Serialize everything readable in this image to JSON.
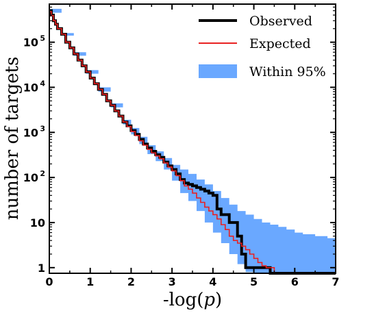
{
  "chart_data": {
    "type": "line",
    "xlabel_prefix": "-log(",
    "xlabel_var": "p",
    "xlabel_suffix": ")",
    "ylabel": "number of targets",
    "xlim": [
      0,
      7
    ],
    "ylim": [
      0.75,
      700000
    ],
    "y_scale": "log",
    "grid": false,
    "legend_position": "top-right",
    "x_ticks": [
      0,
      1,
      2,
      3,
      4,
      5,
      6,
      7
    ],
    "x_tick_labels": [
      "0",
      "1",
      "2",
      "3",
      "4",
      "5",
      "6",
      "7"
    ],
    "y_ticks": [
      {
        "value": 1,
        "label": "1",
        "exp": ""
      },
      {
        "value": 10,
        "label": "10",
        "exp": ""
      },
      {
        "value": 100,
        "label": "10",
        "exp": "2"
      },
      {
        "value": 1000,
        "label": "10",
        "exp": "3"
      },
      {
        "value": 10000,
        "label": "10",
        "exp": "4"
      },
      {
        "value": 100000,
        "label": "10",
        "exp": "5"
      }
    ],
    "series": [
      {
        "name": "Observed",
        "color": "#000000",
        "style": "step",
        "x": [
          0.0,
          0.05,
          0.1,
          0.15,
          0.2,
          0.3,
          0.4,
          0.5,
          0.6,
          0.7,
          0.8,
          0.9,
          1.0,
          1.1,
          1.2,
          1.3,
          1.4,
          1.5,
          1.6,
          1.7,
          1.8,
          1.9,
          2.0,
          2.1,
          2.2,
          2.3,
          2.4,
          2.5,
          2.6,
          2.7,
          2.8,
          2.9,
          3.0,
          3.1,
          3.2,
          3.3,
          3.4,
          3.5,
          3.6,
          3.7,
          3.8,
          3.9,
          4.0,
          4.1,
          4.2,
          4.3,
          4.4,
          4.5,
          4.6,
          4.7,
          4.8,
          5.4,
          5.5,
          6.0,
          7.0
        ],
        "values": [
          500000,
          400000,
          300000,
          250000,
          200000,
          150000,
          100000,
          75000,
          55000,
          40000,
          30000,
          22000,
          16000,
          12000,
          9000,
          7000,
          5000,
          4000,
          3000,
          2300,
          1700,
          1400,
          1100,
          900,
          700,
          550,
          450,
          380,
          320,
          280,
          220,
          180,
          150,
          120,
          90,
          75,
          70,
          65,
          60,
          55,
          50,
          45,
          40,
          20,
          15,
          15,
          10,
          10,
          5,
          2,
          1,
          0.75,
          0.75,
          0.75,
          0.75
        ]
      },
      {
        "name": "Expected",
        "color": "#e82020",
        "style": "step",
        "x": [
          0.0,
          0.05,
          0.1,
          0.15,
          0.2,
          0.3,
          0.4,
          0.5,
          0.6,
          0.7,
          0.8,
          0.9,
          1.0,
          1.1,
          1.2,
          1.3,
          1.4,
          1.5,
          1.6,
          1.7,
          1.8,
          1.9,
          2.0,
          2.1,
          2.2,
          2.3,
          2.4,
          2.5,
          2.6,
          2.7,
          2.8,
          2.9,
          3.0,
          3.1,
          3.2,
          3.3,
          3.4,
          3.5,
          3.6,
          3.7,
          3.8,
          3.9,
          4.0,
          4.1,
          4.2,
          4.3,
          4.4,
          4.5,
          4.6,
          4.7,
          4.8,
          4.9,
          5.0,
          5.1,
          5.2,
          5.3,
          5.4,
          5.5,
          7.0
        ],
        "values": [
          480000,
          390000,
          300000,
          250000,
          200000,
          150000,
          100000,
          75000,
          55000,
          40000,
          30000,
          22000,
          16000,
          12000,
          9000,
          7000,
          5000,
          4000,
          3000,
          2300,
          1700,
          1350,
          1050,
          850,
          650,
          520,
          420,
          350,
          300,
          260,
          210,
          170,
          140,
          110,
          85,
          65,
          55,
          45,
          35,
          28,
          22,
          18,
          15,
          12,
          9,
          7,
          5,
          4,
          3.5,
          3,
          2.5,
          2,
          1.6,
          1.3,
          1.1,
          1,
          1,
          0.75,
          0.75
        ]
      },
      {
        "name": "Within 95%",
        "color": "#6aa8ff",
        "style": "band",
        "x": [
          0.0,
          0.3,
          0.6,
          0.9,
          1.2,
          1.5,
          1.8,
          2.0,
          2.2,
          2.4,
          2.6,
          2.8,
          3.0,
          3.2,
          3.4,
          3.6,
          3.8,
          4.0,
          4.2,
          4.4,
          4.6,
          4.8,
          5.0,
          5.2,
          5.4,
          5.6,
          5.8,
          6.0,
          6.2,
          6.5,
          6.8,
          7.0
        ],
        "lower": [
          450000,
          140000,
          50000,
          20000,
          8000,
          3600,
          1500,
          900,
          550,
          330,
          230,
          150,
          85,
          45,
          30,
          18,
          10,
          6,
          3.5,
          2,
          1.2,
          0.8,
          0.75,
          0.75,
          0.75,
          0.75,
          0.75,
          0.75,
          0.75,
          0.75,
          0.75,
          0.75
        ],
        "upper": [
          550000,
          160000,
          60000,
          24000,
          10000,
          4400,
          1900,
          1250,
          800,
          520,
          380,
          270,
          190,
          150,
          120,
          90,
          70,
          50,
          35,
          25,
          18,
          15,
          12,
          10,
          9,
          8,
          7,
          6,
          5.5,
          5,
          4.5,
          4
        ]
      }
    ]
  }
}
